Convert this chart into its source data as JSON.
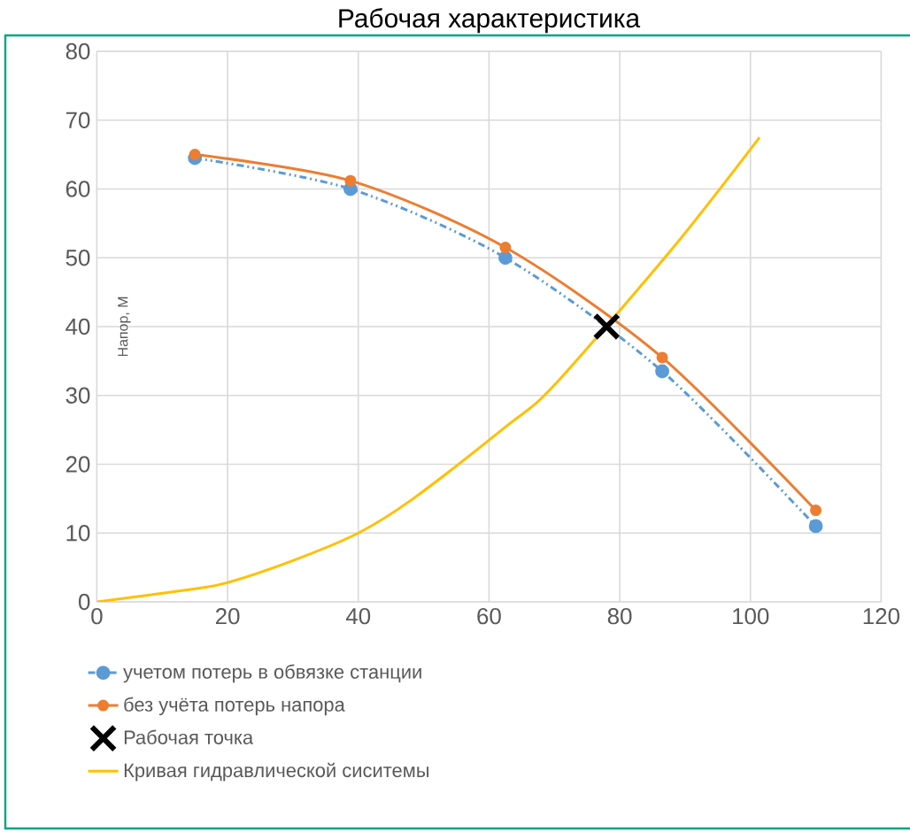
{
  "chart_data": {
    "type": "line",
    "title": "Рабочая характеристика",
    "ylabel": "Напор, М",
    "xlim": [
      0,
      120
    ],
    "xticks": [
      0,
      20,
      40,
      60,
      80,
      100,
      120
    ],
    "ylim": [
      0,
      80
    ],
    "yticks": [
      0,
      10,
      20,
      30,
      40,
      50,
      60,
      70,
      80
    ],
    "grid": true,
    "legend": "bottom",
    "series": [
      {
        "name": "учетом потерь в обвязке станции",
        "color": "#5b9bd5",
        "marker": "circle",
        "line_style": "dashed",
        "x": [
          15,
          38.8,
          62.5,
          86.5,
          110
        ],
        "values": [
          64.5,
          60,
          50,
          33.5,
          11
        ]
      },
      {
        "name": "без учёта потерь напора",
        "color": "#ed7d31",
        "marker": "circle",
        "line_style": "solid",
        "x": [
          15,
          38.8,
          62.5,
          86.5,
          110
        ],
        "values": [
          65,
          61.2,
          51.5,
          35.5,
          13.3
        ]
      },
      {
        "name": "Рабочая точка",
        "type": "scatter",
        "color": "#000000",
        "marker": "cross",
        "x": [
          78
        ],
        "values": [
          40
        ]
      },
      {
        "name": "Кривая гидравлической сиситемы",
        "color": "#ffc000",
        "marker": "none",
        "line_style": "solid",
        "x": [
          0,
          15,
          20,
          30,
          40,
          48.4,
          62.9,
          70,
          88.2,
          101.4
        ],
        "values": [
          0,
          1.9,
          2.8,
          6,
          10,
          15,
          25.7,
          31.5,
          51.5,
          67.5
        ]
      }
    ]
  }
}
